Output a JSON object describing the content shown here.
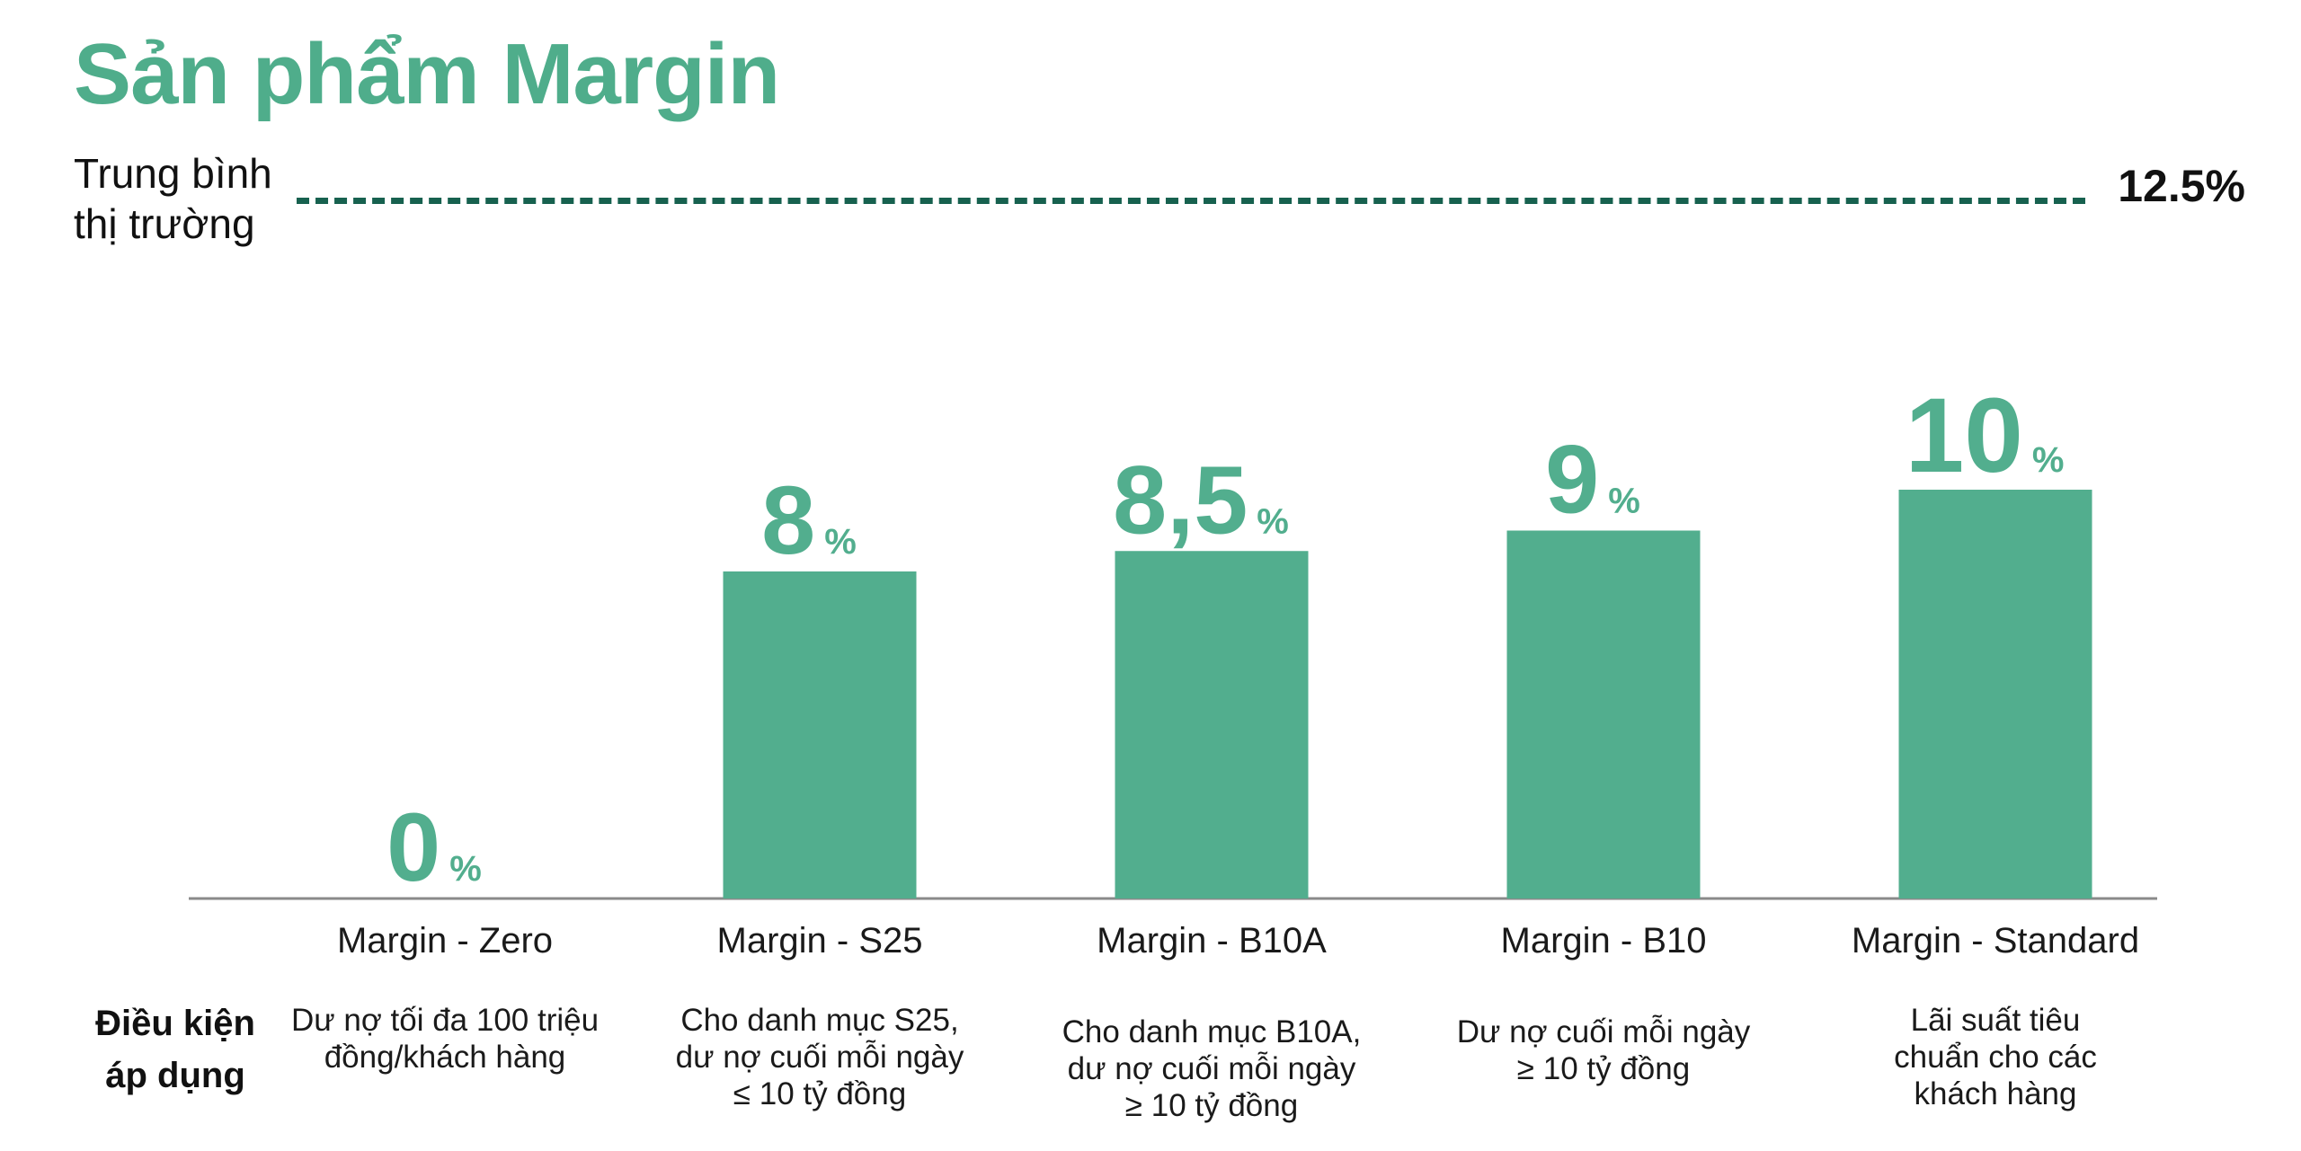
{
  "title": "Sản phẩm Margin",
  "market_average": {
    "label_line1": "Trung bình",
    "label_line2": "thị trường",
    "value": 12.5,
    "value_label": "12.5%"
  },
  "conditions_title": {
    "line1": "Điều kiện",
    "line2": "áp dụng"
  },
  "colors": {
    "bar": "#52ae8e",
    "title": "#4fad8b",
    "market_line": "#17614f"
  },
  "chart_data": {
    "type": "bar",
    "categories": [
      "Margin - Zero",
      "Margin - S25",
      "Margin - B10A",
      "Margin - B10",
      "Margin - Standard"
    ],
    "values": [
      0,
      8,
      8.5,
      9,
      10
    ],
    "value_labels": [
      "0",
      "8",
      "8,5",
      "9",
      "10"
    ],
    "unit": "%",
    "reference_line": {
      "value": 12.5,
      "label": "12.5%"
    },
    "conditions": [
      [
        "Dư nợ tối đa 100 triệu",
        "đồng/khách hàng"
      ],
      [
        "Cho danh mục S25,",
        "dư nợ  cuối mỗi ngày",
        "≤ 10 tỷ đồng"
      ],
      [
        "Cho danh mục B10A,",
        "dư nợ cuối mỗi ngày",
        "≥  10 tỷ đồng"
      ],
      [
        "Dư nợ cuối mỗi ngày",
        "≥  10 tỷ đồng"
      ],
      [
        "Lãi suất tiêu",
        "chuẩn cho các",
        "khách hàng"
      ]
    ],
    "grid": false,
    "legend": "none"
  }
}
